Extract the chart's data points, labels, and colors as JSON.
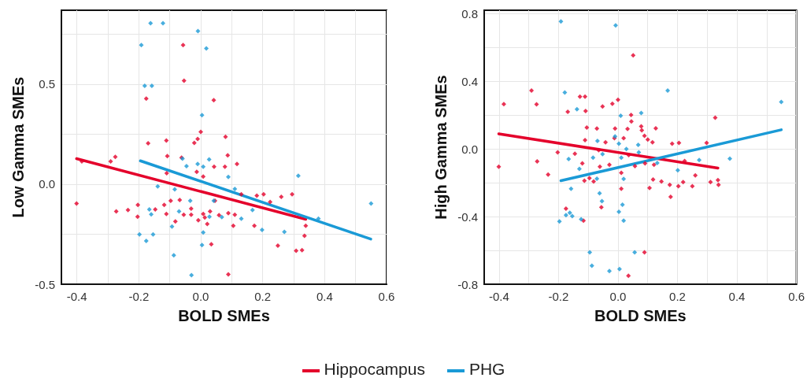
{
  "chart_data": [
    {
      "type": "scatter",
      "xlabel": "BOLD SMEs",
      "ylabel": "Low Gamma SMEs",
      "marker": "diamond",
      "grid": true,
      "legend": "bottom",
      "xlim": [
        -0.45,
        0.6
      ],
      "xticks": [
        -0.4,
        {
          "value": -0.3,
          "label": null
        },
        -0.2,
        {
          "value": -0.1,
          "label": null
        },
        {
          "value": 0,
          "label": "0.0"
        },
        {
          "value": 0.1,
          "label": null
        },
        0.2,
        {
          "value": 0.3,
          "label": null
        },
        0.4,
        {
          "value": 0.5,
          "label": null
        },
        0.6
      ],
      "ylim": [
        -0.5,
        0.87
      ],
      "yticks": [
        -0.5,
        {
          "value": -0.25,
          "label": null
        },
        {
          "value": 0,
          "label": "0.0"
        },
        {
          "value": 0.25,
          "label": null
        },
        0.5,
        {
          "value": 0.75,
          "label": null
        }
      ],
      "series": [
        {
          "name": "Hippocampus",
          "type": "scatter",
          "color": "#e4002b",
          "x": [
            -0.401,
            -0.384,
            -0.291,
            -0.276,
            -0.273,
            -0.235,
            -0.204,
            -0.203,
            -0.176,
            -0.17,
            -0.147,
            -0.118,
            -0.111,
            -0.111,
            -0.108,
            -0.11,
            -0.097,
            -0.082,
            -0.062,
            -0.068,
            -0.055,
            -0.057,
            -0.054,
            -0.031,
            -0.031,
            -0.021,
            -0.013,
            -0.008,
            0.0,
            -0.01,
            0.008,
            0.008,
            0.013,
            0.021,
            0.03,
            0.034,
            0.042,
            0.043,
            0.046,
            0.059,
            0.078,
            0.08,
            0.087,
            0.089,
            0.089,
            0.105,
            0.11,
            0.117,
            0.131,
            0.173,
            0.181,
            0.203,
            0.224,
            0.249,
            0.26,
            0.295,
            0.308,
            0.327,
            0.335,
            0.339
          ],
          "values": [
            -0.096,
            0.114,
            0.114,
            0.137,
            -0.136,
            -0.129,
            -0.162,
            -0.103,
            0.428,
            0.205,
            -0.126,
            -0.103,
            -0.149,
            0.218,
            0.141,
            0.055,
            -0.083,
            -0.186,
            0.133,
            -0.079,
            -0.153,
            0.696,
            0.518,
            -0.153,
            -0.122,
            0.207,
            0.062,
            -0.18,
            0.262,
            0.226,
            0.038,
            -0.149,
            -0.166,
            -0.199,
            -0.136,
            -0.3,
            0.42,
            0.088,
            -0.083,
            -0.155,
            0.088,
            0.237,
            0.145,
            -0.145,
            -0.451,
            -0.208,
            -0.153,
            0.101,
            -0.05,
            -0.208,
            -0.057,
            -0.05,
            -0.089,
            -0.307,
            -0.063,
            -0.05,
            -0.333,
            -0.33,
            -0.258,
            -0.208
          ]
        },
        {
          "name": "PHG",
          "type": "scatter",
          "color": "#1a9ad6",
          "x": [
            -0.192,
            -0.162,
            -0.122,
            -0.009,
            0.018,
            -0.181,
            -0.158,
            0.004,
            -0.198,
            -0.176,
            -0.154,
            -0.166,
            -0.16,
            -0.139,
            -0.093,
            -0.087,
            -0.084,
            -0.07,
            -0.059,
            -0.046,
            -0.034,
            -0.03,
            -0.01,
            0.008,
            0.027,
            0.004,
            0.008,
            0.028,
            0.042,
            0.068,
            0.089,
            0.11,
            0.131,
            0.167,
            0.198,
            0.27,
            0.315,
            0.38,
            0.55
          ],
          "values": [
            0.696,
            0.805,
            0.805,
            0.766,
            0.679,
            0.492,
            0.492,
            0.345,
            -0.251,
            -0.283,
            -0.251,
            -0.126,
            -0.151,
            -0.011,
            -0.212,
            -0.355,
            -0.026,
            -0.136,
            0.128,
            0.091,
            -0.083,
            -0.455,
            0.101,
            0.088,
            0.124,
            -0.304,
            -0.241,
            -0.162,
            -0.083,
            -0.164,
            0.036,
            -0.024,
            -0.172,
            -0.129,
            -0.228,
            -0.238,
            0.042,
            -0.172,
            -0.096
          ]
        },
        {
          "type": "line",
          "marker": "none",
          "color": "#e4002b",
          "x": [
            -0.401,
            0.339
          ],
          "values": [
            0.128,
            -0.175
          ]
        },
        {
          "type": "line",
          "marker": "none",
          "color": "#1a9ad6",
          "x": [
            -0.195,
            0.549
          ],
          "values": [
            0.117,
            -0.274
          ]
        }
      ]
    },
    {
      "type": "scatter",
      "xlabel": "BOLD SMEs",
      "ylabel": "High Gamma SMEs",
      "marker": "diamond",
      "grid": true,
      "xlim": [
        -0.45,
        0.6
      ],
      "xticks": [
        -0.4,
        {
          "value": -0.3,
          "label": null
        },
        -0.2,
        {
          "value": -0.1,
          "label": null
        },
        {
          "value": 0,
          "label": "0.0"
        },
        {
          "value": 0.1,
          "label": null
        },
        0.2,
        {
          "value": 0.3,
          "label": null
        },
        0.4,
        {
          "value": 0.5,
          "label": null
        },
        0.6
      ],
      "ylim": [
        -0.8,
        0.82
      ],
      "yticks": [
        -0.8,
        {
          "value": -0.6,
          "label": null
        },
        -0.4,
        {
          "value": -0.2,
          "label": null
        },
        {
          "value": 0,
          "label": "0.0"
        },
        {
          "value": 0.2,
          "label": null
        },
        0.4,
        {
          "value": 0.6,
          "label": null
        },
        0.8
      ],
      "series": [
        {
          "type": "scatter",
          "color": "#e4002b",
          "x": [
            -0.401,
            -0.384,
            -0.291,
            -0.274,
            -0.272,
            -0.235,
            -0.203,
            -0.175,
            -0.169,
            -0.145,
            -0.128,
            -0.111,
            -0.109,
            -0.12,
            -0.113,
            -0.116,
            -0.105,
            -0.111,
            -0.096,
            -0.082,
            -0.071,
            -0.065,
            -0.061,
            -0.056,
            -0.052,
            -0.042,
            -0.029,
            -0.019,
            0.0,
            -0.01,
            -0.012,
            0.011,
            0.011,
            0.019,
            0.032,
            0.045,
            0.044,
            0.036,
            0.051,
            0.057,
            0.035,
            0.078,
            0.08,
            0.089,
            0.091,
            0.089,
            0.1,
            0.106,
            0.116,
            0.118,
            0.121,
            0.127,
            0.146,
            0.174,
            0.177,
            0.182,
            0.203,
            0.205,
            0.219,
            0.224,
            0.25,
            0.26,
            0.298,
            0.311,
            0.327,
            0.336,
            0.338
          ],
          "values": [
            -0.105,
            0.265,
            0.345,
            0.264,
            -0.074,
            -0.152,
            -0.02,
            -0.353,
            0.22,
            -0.028,
            0.309,
            0.309,
            0.224,
            -0.086,
            -0.188,
            -0.424,
            0.126,
            0.052,
            -0.173,
            -0.193,
            0.121,
            -0.008,
            -0.105,
            -0.345,
            0.251,
            0.039,
            -0.094,
            0.267,
            0.29,
            0.121,
            0.063,
            -0.141,
            -0.235,
            0.063,
            0.118,
            0.162,
            0.201,
            -0.036,
            0.553,
            -0.102,
            -0.75,
            0.133,
            0.11,
            0.078,
            -0.086,
            -0.612,
            0.055,
            -0.231,
            0.039,
            -0.181,
            -0.094,
            0.122,
            -0.193,
            -0.212,
            -0.283,
            0.031,
            -0.22,
            0.036,
            -0.196,
            -0.071,
            -0.22,
            -0.157,
            0.036,
            -0.196,
            0.184,
            -0.184,
            -0.212
          ]
        },
        {
          "type": "scatter",
          "color": "#1a9ad6",
          "x": [
            -0.192,
            -0.008,
            0.167,
            0.549,
            -0.179,
            -0.138,
            -0.197,
            -0.175,
            -0.162,
            -0.154,
            -0.166,
            -0.158,
            -0.13,
            -0.124,
            -0.095,
            -0.088,
            -0.084,
            -0.071,
            -0.069,
            -0.062,
            -0.054,
            -0.052,
            -0.029,
            -0.01,
            0.003,
            0.005,
            0.003,
            0.009,
            0.011,
            0.015,
            0.019,
            0.019,
            0.028,
            0.056,
            0.068,
            0.07,
            0.078,
            0.132,
            0.201,
            0.273,
            0.376
          ],
          "values": [
            0.754,
            0.73,
            0.345,
            0.278,
            0.333,
            0.235,
            -0.429,
            -0.392,
            -0.377,
            -0.397,
            -0.06,
            -0.235,
            -0.118,
            -0.416,
            -0.612,
            -0.691,
            -0.052,
            -0.176,
            0.047,
            -0.262,
            -0.309,
            -0.031,
            -0.722,
            0.074,
            0.031,
            -0.71,
            -0.372,
            0.196,
            -0.052,
            -0.33,
            -0.424,
            -0.177,
            0.0,
            -0.612,
            0.024,
            -0.02,
            0.212,
            -0.083,
            -0.126,
            -0.066,
            -0.058
          ]
        },
        {
          "type": "line",
          "marker": "none",
          "color": "#e4002b",
          "x": [
            -0.401,
            0.336
          ],
          "values": [
            0.089,
            -0.113
          ]
        },
        {
          "type": "line",
          "marker": "none",
          "color": "#1a9ad6",
          "x": [
            -0.192,
            0.549
          ],
          "values": [
            -0.188,
            0.113
          ]
        }
      ]
    }
  ]
}
